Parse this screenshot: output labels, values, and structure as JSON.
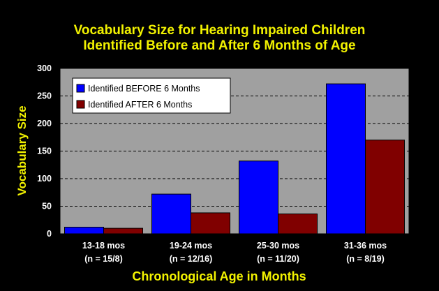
{
  "chart_data": {
    "type": "bar",
    "title_lines": [
      "Vocabulary Size for Hearing Impaired Children",
      "Identified Before and After 6 Months of Age"
    ],
    "xlabel": "Chronological Age in Months",
    "ylabel": "Vocabulary Size",
    "categories": [
      [
        "13-18 mos",
        "(n = 15/8)"
      ],
      [
        "19-24 mos",
        "(n = 12/16)"
      ],
      [
        "25-30 mos",
        "(n = 11/20)"
      ],
      [
        "31-36 mos",
        "(n = 8/19)"
      ]
    ],
    "series": [
      {
        "name": "Identified BEFORE 6 Months",
        "values": [
          12,
          72,
          132,
          272
        ],
        "color": "#0000ff"
      },
      {
        "name": "Identified AFTER 6 Months",
        "values": [
          10,
          38,
          36,
          170
        ],
        "color": "#800000"
      }
    ],
    "ylim": [
      0,
      300
    ],
    "yticks": [
      0,
      50,
      100,
      150,
      200,
      250,
      300
    ],
    "grid": "horizontal dashed",
    "legend_position": "top-left",
    "colors": {
      "background": "#000000",
      "plot_area": "#a0a0a0",
      "title": "#f2f200",
      "ticks": "#ffffff"
    }
  }
}
